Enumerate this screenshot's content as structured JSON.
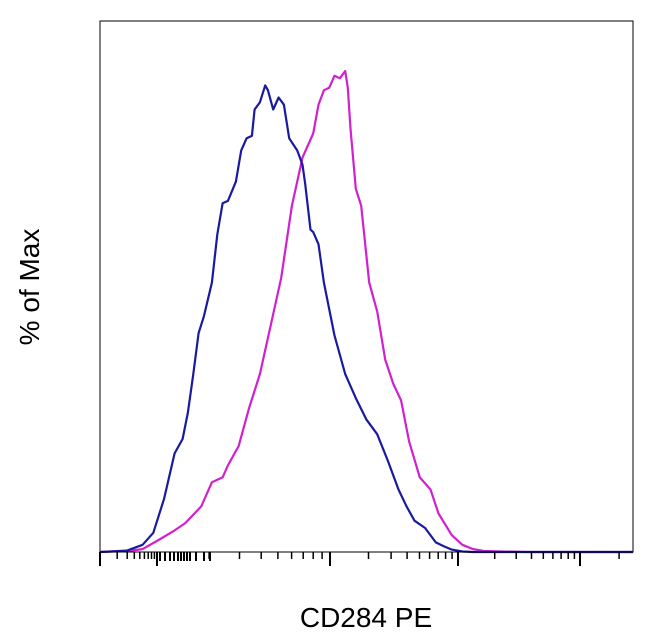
{
  "chart_data": {
    "type": "line",
    "title": "",
    "xlabel": "CD284 PE",
    "ylabel": "% of Max",
    "x_scale": "log (flow cytometry, unlabeled decades)",
    "x_tick_labels": [],
    "y_tick_labels": [],
    "grid": false,
    "legend": "none",
    "x_range": [
      0,
      1
    ],
    "y_range": [
      0,
      100
    ],
    "series": [
      {
        "color": "#1a1aa0",
        "x": [
          0.0,
          0.05,
          0.08,
          0.1,
          0.12,
          0.14,
          0.155,
          0.165,
          0.175,
          0.185,
          0.195,
          0.21,
          0.22,
          0.23,
          0.24,
          0.255,
          0.265,
          0.275,
          0.285,
          0.29,
          0.3,
          0.31,
          0.315,
          0.325,
          0.335,
          0.345,
          0.355,
          0.37,
          0.38,
          0.385,
          0.395,
          0.4,
          0.41,
          0.42,
          0.44,
          0.46,
          0.48,
          0.5,
          0.52,
          0.54,
          0.56,
          0.575,
          0.59,
          0.61,
          0.63,
          0.645,
          0.66,
          0.68,
          0.7,
          0.73,
          0.76,
          0.8,
          0.85,
          1.0
        ],
        "y": [
          0.0,
          0.3,
          1.5,
          4.0,
          11.0,
          20.5,
          23.5,
          29.0,
          37.0,
          45.5,
          49.0,
          56.0,
          66.0,
          72.5,
          73.0,
          77.0,
          83.5,
          86.0,
          86.5,
          92.0,
          93.5,
          97.0,
          96.0,
          92.0,
          94.5,
          93.0,
          86.0,
          83.5,
          80.5,
          76.5,
          67.0,
          66.5,
          64.0,
          56.0,
          45.0,
          37.0,
          32.0,
          27.5,
          24.5,
          19.0,
          13.0,
          9.5,
          6.5,
          5.0,
          2.0,
          1.2,
          0.5,
          0.1,
          0.0,
          0.0,
          0.0,
          0.0,
          0.0,
          0.0
        ]
      },
      {
        "color": "#d020d0",
        "x": [
          0.0,
          0.05,
          0.08,
          0.11,
          0.14,
          0.16,
          0.19,
          0.21,
          0.23,
          0.24,
          0.26,
          0.28,
          0.3,
          0.32,
          0.34,
          0.36,
          0.38,
          0.4,
          0.41,
          0.42,
          0.43,
          0.44,
          0.45,
          0.46,
          0.465,
          0.47,
          0.48,
          0.49,
          0.505,
          0.52,
          0.535,
          0.55,
          0.565,
          0.58,
          0.6,
          0.62,
          0.635,
          0.66,
          0.68,
          0.7,
          0.72,
          0.75,
          0.8,
          0.85,
          1.0
        ],
        "y": [
          0.0,
          0.2,
          0.6,
          2.5,
          4.5,
          6.0,
          9.5,
          14.5,
          15.5,
          18.0,
          22.0,
          30.0,
          37.0,
          47.0,
          57.0,
          72.0,
          82.0,
          87.0,
          93.0,
          96.0,
          96.5,
          99.0,
          98.5,
          100.0,
          96.5,
          88.0,
          75.5,
          72.0,
          56.0,
          50.0,
          40.0,
          35.0,
          31.5,
          23.0,
          15.5,
          13.0,
          8.0,
          3.5,
          1.5,
          0.6,
          0.2,
          0.1,
          0.0,
          0.0,
          0.0
        ]
      }
    ]
  }
}
